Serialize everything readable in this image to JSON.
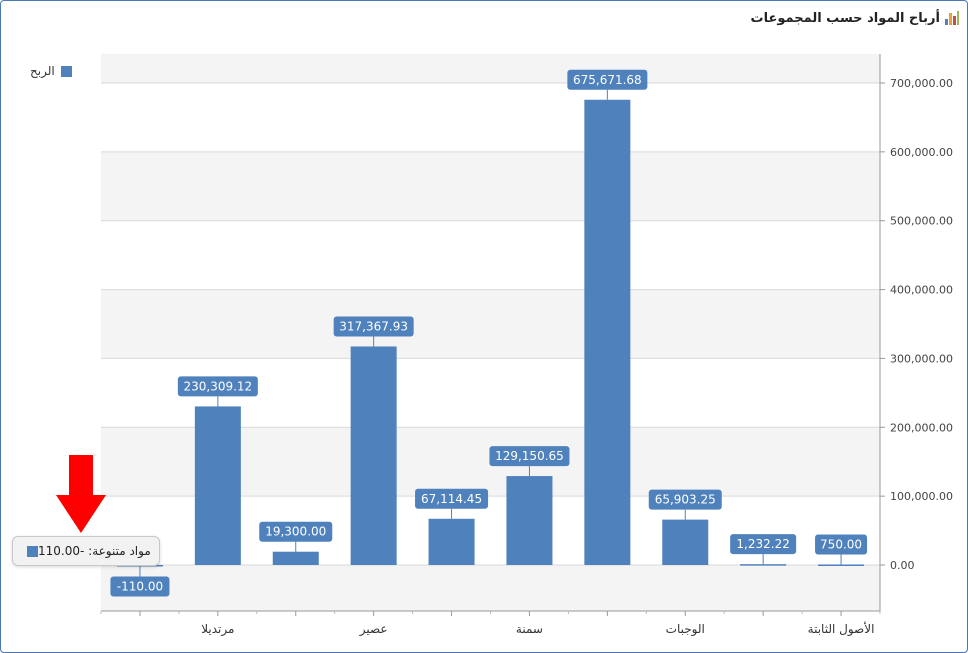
{
  "header": {
    "title": "أرباح المواد حسب المجموعات",
    "icon": "bar-chart-icon"
  },
  "legend": {
    "label": "الربح",
    "color": "#4f81bd"
  },
  "tooltip": {
    "text": "مواد متنوعة: -110.00"
  },
  "colors": {
    "bar": "#4f81bd",
    "label_bg": "#4f81bd",
    "band": "#f4f4f4",
    "grid": "#d9d9d9",
    "arrow": "#ff0000",
    "border": "#4a78b4"
  },
  "chart_data": {
    "type": "bar",
    "categories": [
      "مواد متنوعة",
      "مرتديلا",
      "",
      "عصير",
      "",
      "سمنة",
      "",
      "الوجبات",
      "",
      "الأصول الثابتة"
    ],
    "values": [
      -110.0,
      230309.12,
      19300.0,
      317367.93,
      67114.45,
      129150.65,
      675671.68,
      65903.25,
      1232.22,
      750.0
    ],
    "data_labels": [
      "-110.00",
      "230,309.12",
      "19,300.00",
      "317,367.93",
      "67,114.45",
      "129,150.65",
      "675,671.68",
      "65,903.25",
      "1,232.22",
      "750.00"
    ],
    "series": [
      {
        "name": "الربح"
      }
    ],
    "ylim": [
      -70000,
      750000
    ],
    "y_ticks": [
      0,
      100000,
      200000,
      300000,
      400000,
      500000,
      600000,
      700000
    ],
    "y_tick_labels": [
      "0.00",
      "100,000.00",
      "200,000.00",
      "300,000.00",
      "400,000.00",
      "500,000.00",
      "600,000.00",
      "700,000.00"
    ],
    "y_axis_side": "right",
    "legend_position": "top-left",
    "grid": true
  }
}
